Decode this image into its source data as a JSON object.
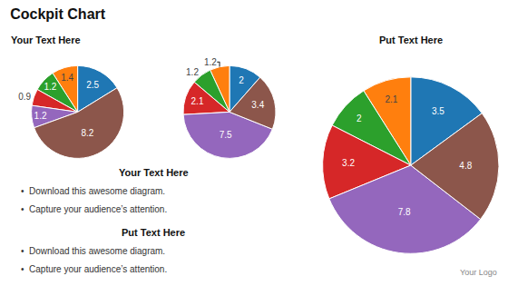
{
  "title": "Cockpit Chart",
  "annotations": [
    [
      "Your Text Here",
      "•  Download this awesome diagram.",
      "•  Capture your audience’s attention."
    ],
    [
      "Put Text Here",
      "•  Download this awesome diagram.",
      "•  Capture your audience’s attention."
    ],
    [
      "Your Logo"
    ]
  ],
  "chart_data": [
    {
      "type": "pie",
      "title": "Your Text Here",
      "values": [
        2.5,
        1.4,
        1.2,
        0.9,
        1.2,
        8.2
      ],
      "data_labels": true
    },
    {
      "type": "pie",
      "values": [
        2.0,
        1.2,
        1.2,
        2.1,
        7.5,
        3.4
      ],
      "data_labels": true
    },
    {
      "type": "pie",
      "title": "Put Text Here",
      "values": [
        3.5,
        2.1,
        2.0,
        3.2,
        7.8,
        4.8
      ],
      "data_labels": true
    }
  ]
}
